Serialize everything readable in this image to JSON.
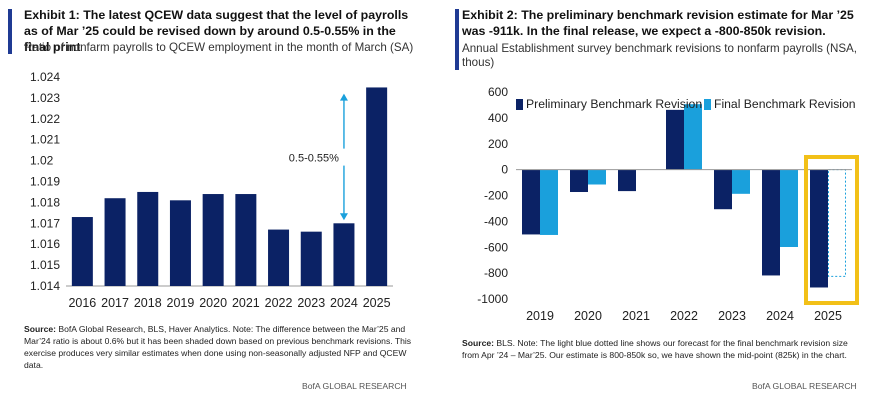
{
  "exhibit1": {
    "title": "Exhibit 1: The latest QCEW data suggest that the level of payrolls as of Mar ’25 could be revised down by around 0.5-0.55% in the final print",
    "subtitle": "Ratio of nonfarm payrolls to QCEW employment in the month of March (SA)",
    "source_label": "Source:",
    "source_text": " BofA Global Research, BLS, Haver Analytics. Note: The difference between the Mar’25 and Mar’24 ratio is about 0.6% but it has been shaded down based on previous benchmark revisions. This exercise produces very similar estimates when done using non-seasonally adjusted NFP and QCEW data.",
    "credit": "BofA GLOBAL RESEARCH"
  },
  "exhibit2": {
    "title": "Exhibit 2: The preliminary benchmark revision estimate for Mar ’25 was -911k. In the final release, we expect a -800-850k revision.",
    "subtitle": "Annual Establishment survey benchmark revisions to nonfarm payrolls (NSA, thous)",
    "source_label": "Source:",
    "source_text": " BLS. Note: The light blue dotted line shows our forecast for the final benchmark revision size from Apr ’24 – Mar’25. Our estimate is 800-850k so, we have shown the mid-point (825k) in the chart.",
    "credit": "BofA GLOBAL RESEARCH"
  },
  "colors": {
    "navy": "#0b2265",
    "light_blue": "#1aa0dc",
    "highlight": "#f2c018",
    "accent_bar": "#1f3a93"
  },
  "chart_data": [
    {
      "type": "bar",
      "categories": [
        "2016",
        "2017",
        "2018",
        "2019",
        "2020",
        "2021",
        "2022",
        "2023",
        "2024",
        "2025"
      ],
      "values": [
        1.0173,
        1.0182,
        1.0185,
        1.0181,
        1.0184,
        1.0184,
        1.0167,
        1.0166,
        1.017,
        1.0235
      ],
      "ylim": [
        1.014,
        1.024
      ],
      "yticks": [
        "1.014",
        "1.015",
        "1.016",
        "1.017",
        "1.018",
        "1.019",
        "1.02",
        "1.021",
        "1.022",
        "1.023",
        "1.024"
      ],
      "annotation": "0.5-0.55%",
      "annotation_range": [
        1.017,
        1.0233
      ]
    },
    {
      "type": "bar",
      "categories": [
        "2019",
        "2020",
        "2021",
        "2022",
        "2023",
        "2024",
        "2025"
      ],
      "series": [
        {
          "name": "Preliminary Benchmark Revision",
          "values": [
            -501,
            -173,
            -166,
            462,
            -306,
            -818,
            -911
          ]
        },
        {
          "name": "Final Benchmark Revision",
          "values": [
            -505,
            -115,
            null,
            506,
            -187,
            -598,
            -825
          ]
        }
      ],
      "ylim": [
        -1000,
        600
      ],
      "yticks": [
        "600",
        "400",
        "200",
        "0",
        "-200",
        "-400",
        "-600",
        "-800",
        "-1000"
      ],
      "forecast_note": "2025 final shown as dotted forecast (-825)"
    }
  ]
}
